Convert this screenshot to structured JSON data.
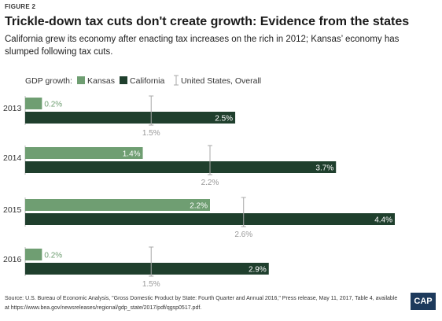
{
  "figure_label": "FIGURE 2",
  "title": "Trickle-down tax cuts don't create growth: Evidence from the states",
  "subtitle": "California grew its economy after enacting tax increases on the rich in 2012; Kansas’ economy has slumped following tax cuts.",
  "source": "Source: U.S. Bureau of Economic Analysis, \"Gross Domestic Product by State: Fourth Quarter and Annual 2016,\" Press release, May 11, 2017, Table 4, available at https://www.bea.gov/newsreleases/regional/gdp_state/2017/pdf/qgsp0517.pdf.",
  "logo_text": "CAP",
  "legend": {
    "prefix": "GDP growth:",
    "kansas": "Kansas",
    "california": "California",
    "us": "United States, Overall"
  },
  "colors": {
    "kansas": "#6f9e72",
    "california": "#1f3f2d",
    "us_marker": "#a8a8a8",
    "label_muted": "#999999"
  },
  "chart_data": {
    "type": "bar",
    "orientation": "horizontal",
    "categories": [
      "2013",
      "2014",
      "2015",
      "2016"
    ],
    "series": [
      {
        "name": "Kansas",
        "values": [
          0.2,
          1.4,
          2.2,
          0.2
        ],
        "labels": [
          "0.2%",
          "1.4%",
          "2.2%",
          "0.2%"
        ]
      },
      {
        "name": "California",
        "values": [
          2.5,
          3.7,
          4.4,
          2.9
        ],
        "labels": [
          "2.5%",
          "3.7%",
          "4.4%",
          "2.9%"
        ]
      }
    ],
    "markers": {
      "name": "United States, Overall",
      "values": [
        1.5,
        2.2,
        2.6,
        1.5
      ],
      "labels": [
        "1.5%",
        "2.2%",
        "2.6%",
        "1.5%"
      ]
    },
    "ylabel": "GDP growth",
    "xlim": [
      0,
      4.4
    ],
    "legend_position": "top-left"
  }
}
